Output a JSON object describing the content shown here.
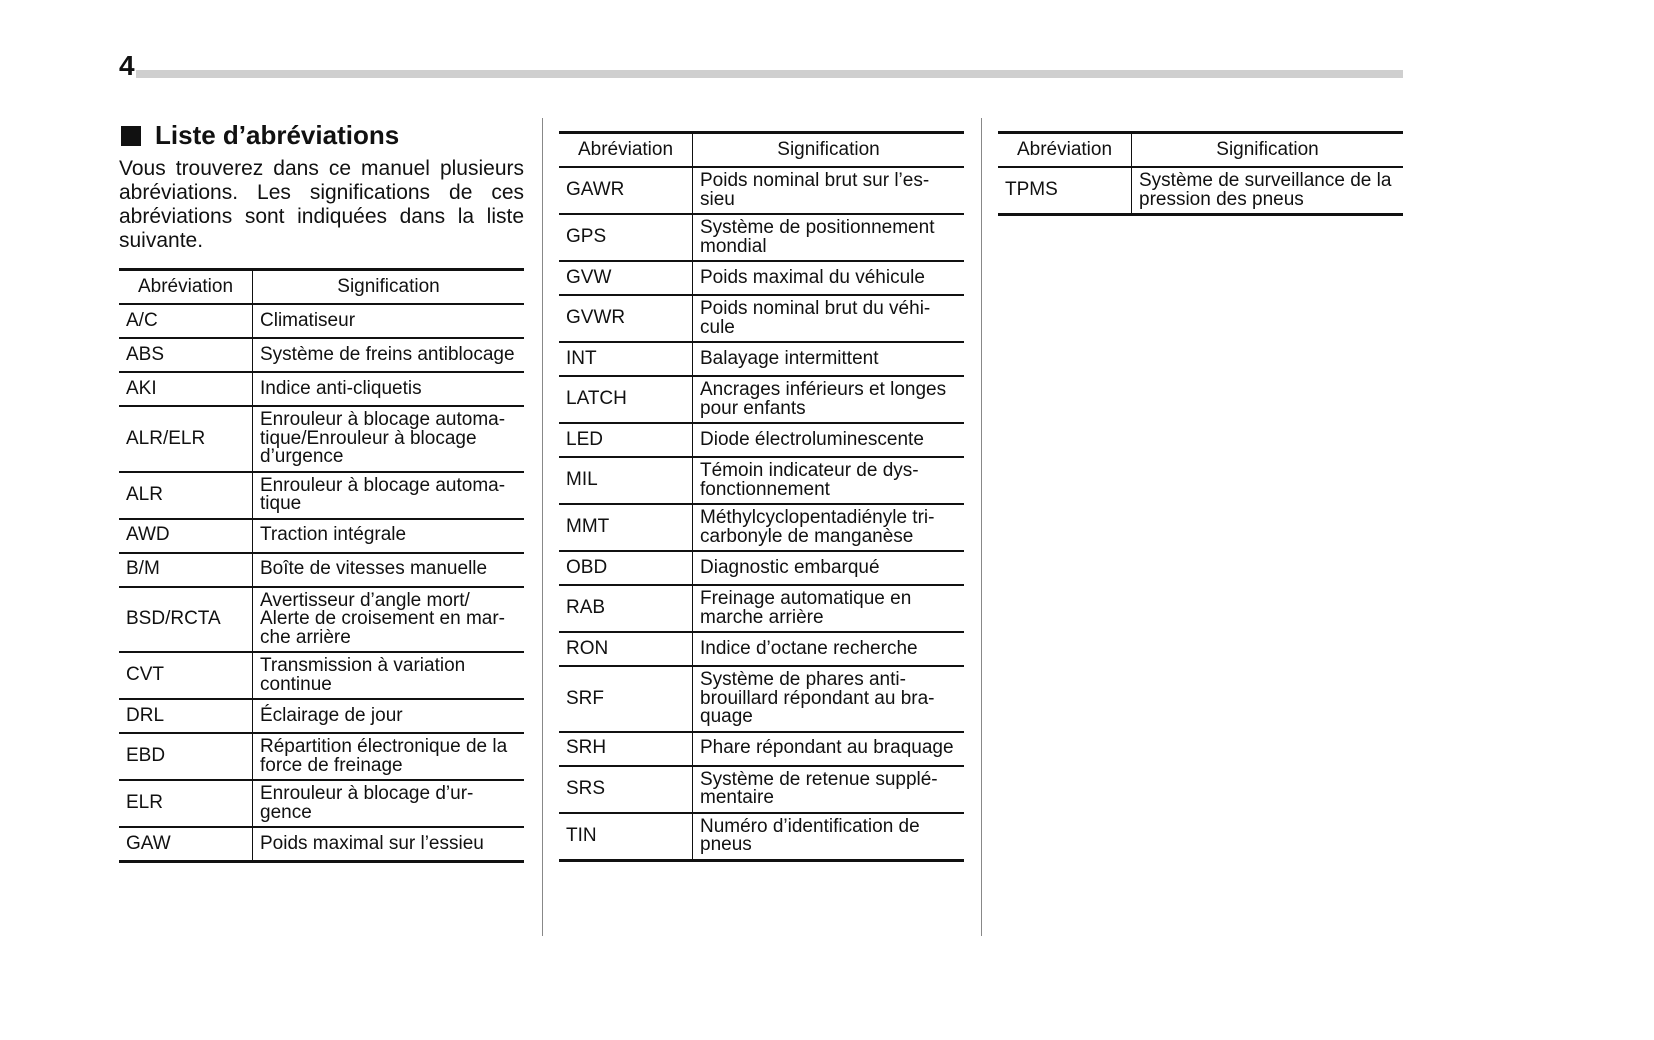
{
  "page_number": "4",
  "section_title": "Liste d’abréviations",
  "intro": "Vous trouverez dans ce manuel plusieurs abréviations. Les significations de ces abréviations sont indiquées dans la liste suivante.",
  "headers": {
    "abbr": "Abréviation",
    "meaning": "Signification"
  },
  "tables": [
    [
      {
        "abbr": "A/C",
        "meaning": "Climatiseur"
      },
      {
        "abbr": "ABS",
        "meaning": "Système de freins antiblocage"
      },
      {
        "abbr": "AKI",
        "meaning": "Indice anti-cliquetis"
      },
      {
        "abbr": "ALR/ELR",
        "meaning": "Enrouleur à blocage automa-\ntique/Enrouleur à blocage\nd’urgence"
      },
      {
        "abbr": "ALR",
        "meaning": "Enrouleur à blocage automa-\ntique"
      },
      {
        "abbr": "AWD",
        "meaning": "Traction intégrale"
      },
      {
        "abbr": "B/M",
        "meaning": "Boîte de vitesses manuelle"
      },
      {
        "abbr": "BSD/RCTA",
        "meaning": "Avertisseur d’angle mort/\nAlerte de croisement en mar-\nche arrière"
      },
      {
        "abbr": "CVT",
        "meaning": "Transmission à variation\ncontinue"
      },
      {
        "abbr": "DRL",
        "meaning": "Éclairage de jour"
      },
      {
        "abbr": "EBD",
        "meaning": "Répartition électronique de la\nforce de freinage"
      },
      {
        "abbr": "ELR",
        "meaning": "Enrouleur à blocage d’ur-\ngence"
      },
      {
        "abbr": "GAW",
        "meaning": "Poids maximal sur l’essieu"
      }
    ],
    [
      {
        "abbr": "GAWR",
        "meaning": "Poids nominal brut sur l’es-\nsieu"
      },
      {
        "abbr": "GPS",
        "meaning": "Système de positionnement\nmondial"
      },
      {
        "abbr": "GVW",
        "meaning": "Poids maximal du véhicule"
      },
      {
        "abbr": "GVWR",
        "meaning": "Poids nominal brut du véhi-\ncule"
      },
      {
        "abbr": "INT",
        "meaning": "Balayage intermittent"
      },
      {
        "abbr": "LATCH",
        "meaning": "Ancrages inférieurs et longes\npour enfants"
      },
      {
        "abbr": "LED",
        "meaning": "Diode électroluminescente"
      },
      {
        "abbr": "MIL",
        "meaning": "Témoin indicateur de dys-\nfonctionnement"
      },
      {
        "abbr": "MMT",
        "meaning": "Méthylcyclopentadiényle tri-\ncarbonyle de manganèse"
      },
      {
        "abbr": "OBD",
        "meaning": "Diagnostic embarqué"
      },
      {
        "abbr": "RAB",
        "meaning": "Freinage automatique en\nmarche arrière"
      },
      {
        "abbr": "RON",
        "meaning": "Indice d’octane recherche"
      },
      {
        "abbr": "SRF",
        "meaning": "Système de phares anti-\nbrouillard répondant au bra-\nquage"
      },
      {
        "abbr": "SRH",
        "meaning": "Phare répondant au braquage"
      },
      {
        "abbr": "SRS",
        "meaning": "Système de retenue supplé-\nmentaire"
      },
      {
        "abbr": "TIN",
        "meaning": "Numéro d’identification de\npneus"
      }
    ],
    [
      {
        "abbr": "TPMS",
        "meaning": "Système de surveillance de la\npression des pneus"
      }
    ]
  ]
}
